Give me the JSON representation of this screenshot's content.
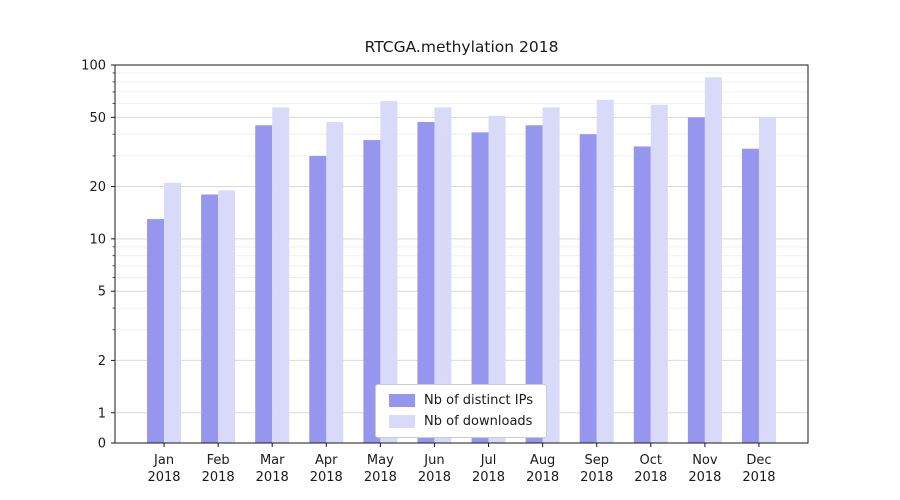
{
  "chart_data": {
    "type": "bar",
    "title": "RTCGA.methylation 2018",
    "categories": [
      "Jan",
      "Feb",
      "Mar",
      "Apr",
      "May",
      "Jun",
      "Jul",
      "Aug",
      "Sep",
      "Oct",
      "Nov",
      "Dec"
    ],
    "x_year": "2018",
    "series": [
      {
        "name": "Nb of distinct IPs",
        "color": "#9696ef",
        "values": [
          13,
          18,
          45,
          30,
          37,
          47,
          41,
          45,
          40,
          34,
          50,
          33
        ]
      },
      {
        "name": "Nb of downloads",
        "color": "#d9d9f9",
        "values": [
          21,
          19,
          57,
          47,
          62,
          57,
          51,
          57,
          63,
          59,
          85,
          50
        ]
      }
    ],
    "yticks": [
      0,
      1,
      2,
      5,
      10,
      20,
      50,
      100
    ],
    "minor_yticks": [
      3,
      4,
      6,
      7,
      8,
      9,
      30,
      40,
      60,
      70,
      80,
      90
    ],
    "scale": "symlog",
    "ylim": [
      0,
      100
    ],
    "grid": true,
    "legend_position": "lower center",
    "colors": {
      "major_grid": "#d9d9d9",
      "minor_grid": "#efefef",
      "axis": "#1a1a1a",
      "text": "#1a1a1a"
    }
  }
}
